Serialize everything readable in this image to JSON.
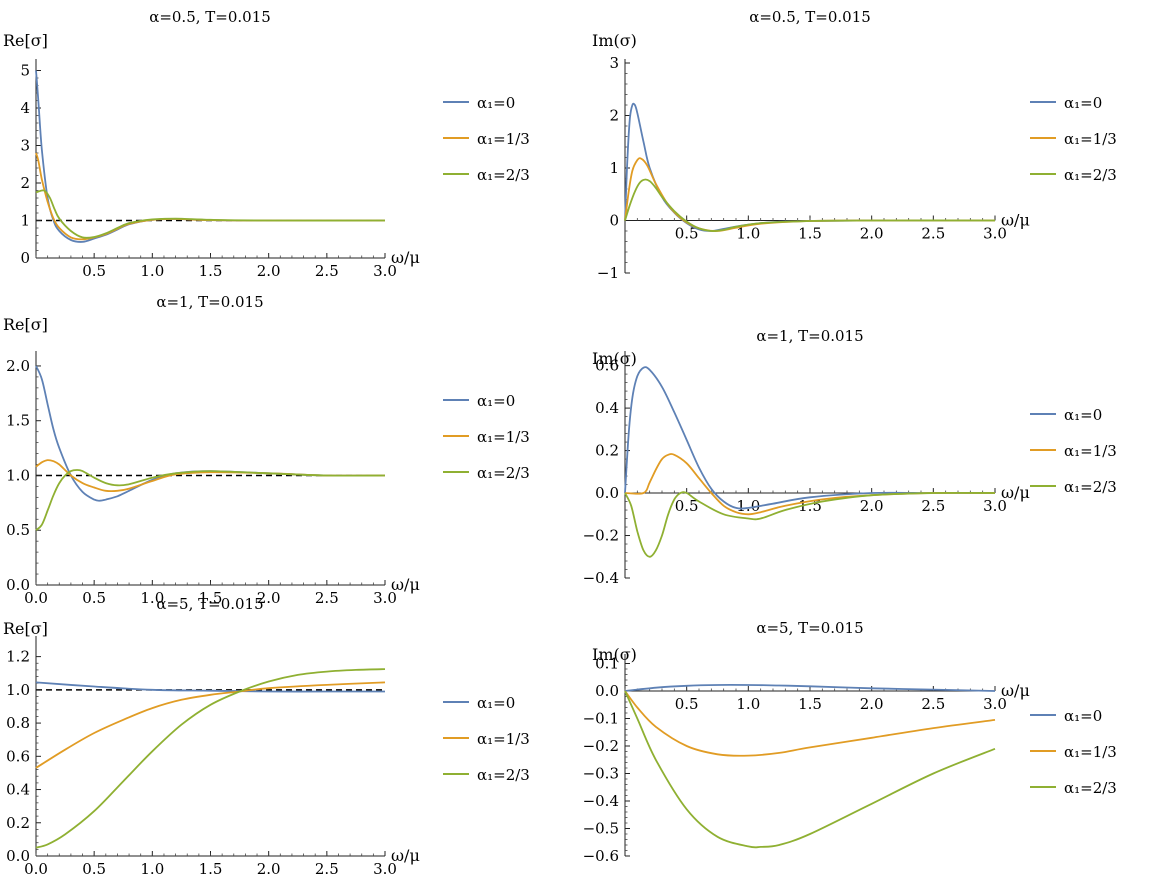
{
  "figure": {
    "legend_labels": [
      "α₁=0",
      "α₁=1/3",
      "α₁=2/3"
    ],
    "x_axis_label": "ω/μ"
  },
  "chart_data": [
    {
      "type": "line",
      "title": "α=0.5, T=0.015",
      "ylabel": "Re[σ]",
      "xlabel": "ω/μ",
      "xlim": [
        0,
        3
      ],
      "ylim": [
        0,
        5.2
      ],
      "xticks": [
        0.5,
        1.0,
        1.5,
        2.0,
        2.5,
        3.0
      ],
      "yticks": [
        0,
        1,
        2,
        3,
        4,
        5
      ],
      "legend_placement": "right",
      "reference_line": 1,
      "series": [
        {
          "name": "α₁=0",
          "color": "#5e81b5",
          "x": [
            0.0,
            0.02,
            0.05,
            0.1,
            0.15,
            0.2,
            0.3,
            0.4,
            0.5,
            0.6,
            0.7,
            0.8,
            1.0,
            1.2,
            1.5,
            2.0,
            3.0
          ],
          "y": [
            5.0,
            4.2,
            2.9,
            1.6,
            1.0,
            0.72,
            0.48,
            0.43,
            0.52,
            0.62,
            0.76,
            0.9,
            1.02,
            1.04,
            1.01,
            1.0,
            1.0
          ]
        },
        {
          "name": "α₁=1/3",
          "color": "#e19c24",
          "x": [
            0.0,
            0.02,
            0.05,
            0.1,
            0.15,
            0.2,
            0.3,
            0.4,
            0.5,
            0.6,
            0.7,
            0.8,
            1.0,
            1.2,
            1.5,
            2.0,
            3.0
          ],
          "y": [
            2.8,
            2.6,
            2.1,
            1.5,
            1.05,
            0.8,
            0.55,
            0.5,
            0.55,
            0.64,
            0.78,
            0.91,
            1.02,
            1.04,
            1.01,
            1.0,
            1.0
          ]
        },
        {
          "name": "α₁=2/3",
          "color": "#8fb032",
          "x": [
            0.0,
            0.02,
            0.05,
            0.08,
            0.12,
            0.16,
            0.2,
            0.3,
            0.4,
            0.5,
            0.6,
            0.7,
            0.8,
            1.0,
            1.2,
            1.5,
            2.0,
            3.0
          ],
          "y": [
            1.75,
            1.77,
            1.8,
            1.78,
            1.6,
            1.3,
            1.05,
            0.72,
            0.55,
            0.56,
            0.66,
            0.8,
            0.93,
            1.03,
            1.05,
            1.02,
            1.0,
            1.0
          ]
        }
      ]
    },
    {
      "type": "line",
      "title": "α=0.5, T=0.015",
      "ylabel": "Im(σ)",
      "xlabel": "ω/μ",
      "xlim": [
        0,
        3
      ],
      "ylim": [
        -1,
        3
      ],
      "xticks": [
        0.5,
        1.0,
        1.5,
        2.0,
        2.5,
        3.0
      ],
      "yticks": [
        -1,
        0,
        1,
        2,
        3
      ],
      "legend_placement": "right",
      "series": [
        {
          "name": "α₁=0",
          "color": "#5e81b5",
          "x": [
            0.0,
            0.02,
            0.04,
            0.06,
            0.08,
            0.1,
            0.15,
            0.2,
            0.3,
            0.4,
            0.5,
            0.6,
            0.7,
            0.8,
            1.0,
            1.2,
            1.5,
            2.0,
            3.0
          ],
          "y": [
            0.0,
            1.2,
            1.95,
            2.2,
            2.2,
            2.05,
            1.5,
            1.0,
            0.45,
            0.15,
            -0.05,
            -0.17,
            -0.2,
            -0.16,
            -0.08,
            -0.03,
            -0.01,
            0.0,
            0.0
          ]
        },
        {
          "name": "α₁=1/3",
          "color": "#e19c24",
          "x": [
            0.0,
            0.03,
            0.06,
            0.1,
            0.13,
            0.18,
            0.25,
            0.35,
            0.45,
            0.55,
            0.65,
            0.75,
            0.9,
            1.1,
            1.5,
            2.0,
            3.0
          ],
          "y": [
            0.0,
            0.55,
            0.95,
            1.15,
            1.18,
            1.05,
            0.7,
            0.3,
            0.05,
            -0.1,
            -0.18,
            -0.2,
            -0.14,
            -0.06,
            -0.01,
            0.0,
            0.0
          ]
        },
        {
          "name": "α₁=2/3",
          "color": "#8fb032",
          "x": [
            0.0,
            0.04,
            0.08,
            0.12,
            0.16,
            0.2,
            0.25,
            0.3,
            0.4,
            0.5,
            0.6,
            0.7,
            0.8,
            0.9,
            1.1,
            1.5,
            2.0,
            3.0
          ],
          "y": [
            0.0,
            0.3,
            0.55,
            0.72,
            0.78,
            0.75,
            0.62,
            0.45,
            0.18,
            -0.02,
            -0.15,
            -0.2,
            -0.18,
            -0.12,
            -0.05,
            -0.01,
            0.0,
            0.0
          ]
        }
      ]
    },
    {
      "type": "line",
      "title": "α=1, T=0.015",
      "ylabel": "Re[σ]",
      "xlabel": "ω/μ",
      "xlim": [
        0,
        3
      ],
      "ylim": [
        0,
        2.1
      ],
      "xticks": [
        0.0,
        0.5,
        1.0,
        1.5,
        2.0,
        2.5,
        3.0
      ],
      "yticks": [
        0.0,
        0.5,
        1.0,
        1.5,
        2.0
      ],
      "legend_placement": "right",
      "reference_line": 1,
      "series": [
        {
          "name": "α₁=0",
          "color": "#5e81b5",
          "x": [
            0.0,
            0.05,
            0.1,
            0.15,
            0.2,
            0.3,
            0.4,
            0.5,
            0.55,
            0.6,
            0.7,
            0.8,
            1.0,
            1.2,
            1.5,
            2.0,
            2.5,
            3.0
          ],
          "y": [
            2.0,
            1.88,
            1.65,
            1.42,
            1.25,
            1.0,
            0.85,
            0.78,
            0.77,
            0.78,
            0.81,
            0.86,
            0.96,
            1.02,
            1.04,
            1.02,
            1.0,
            1.0
          ]
        },
        {
          "name": "α₁=1/3",
          "color": "#e19c24",
          "x": [
            0.0,
            0.05,
            0.1,
            0.15,
            0.2,
            0.3,
            0.4,
            0.5,
            0.6,
            0.7,
            0.8,
            1.0,
            1.2,
            1.5,
            2.0,
            2.5,
            3.0
          ],
          "y": [
            1.08,
            1.12,
            1.14,
            1.13,
            1.1,
            1.0,
            0.93,
            0.89,
            0.86,
            0.86,
            0.88,
            0.95,
            1.01,
            1.03,
            1.02,
            1.0,
            1.0
          ]
        },
        {
          "name": "α₁=2/3",
          "color": "#8fb032",
          "x": [
            0.0,
            0.05,
            0.1,
            0.15,
            0.2,
            0.25,
            0.3,
            0.35,
            0.4,
            0.5,
            0.6,
            0.7,
            0.8,
            1.0,
            1.2,
            1.5,
            2.0,
            2.5,
            3.0
          ],
          "y": [
            0.5,
            0.55,
            0.68,
            0.82,
            0.93,
            1.0,
            1.04,
            1.05,
            1.04,
            0.98,
            0.93,
            0.91,
            0.92,
            0.98,
            1.02,
            1.04,
            1.02,
            1.0,
            1.0
          ]
        }
      ]
    },
    {
      "type": "line",
      "title": "α=1, T=0.015",
      "ylabel": "Im(σ)",
      "xlabel": "ω/μ",
      "xlim": [
        0,
        3
      ],
      "ylim": [
        -0.4,
        0.65
      ],
      "xticks": [
        0.5,
        1.0,
        1.5,
        2.0,
        2.5,
        3.0
      ],
      "yticks": [
        -0.4,
        -0.2,
        0.0,
        0.2,
        0.4,
        0.6
      ],
      "legend_placement": "right",
      "series": [
        {
          "name": "α₁=0",
          "color": "#5e81b5",
          "x": [
            0.0,
            0.03,
            0.06,
            0.1,
            0.15,
            0.2,
            0.3,
            0.4,
            0.5,
            0.6,
            0.7,
            0.8,
            0.9,
            1.0,
            1.2,
            1.5,
            2.0,
            2.5,
            3.0
          ],
          "y": [
            0.0,
            0.28,
            0.45,
            0.55,
            0.59,
            0.58,
            0.5,
            0.38,
            0.25,
            0.12,
            0.02,
            -0.04,
            -0.07,
            -0.07,
            -0.05,
            -0.02,
            0.0,
            0.0,
            0.0
          ]
        },
        {
          "name": "α₁=1/3",
          "color": "#e19c24",
          "x": [
            0.0,
            0.15,
            0.2,
            0.25,
            0.3,
            0.35,
            0.4,
            0.5,
            0.6,
            0.7,
            0.8,
            0.9,
            1.0,
            1.1,
            1.3,
            1.6,
            2.0,
            2.5,
            3.0
          ],
          "y": [
            0.0,
            0.0,
            0.05,
            0.11,
            0.16,
            0.18,
            0.18,
            0.14,
            0.07,
            0.0,
            -0.06,
            -0.09,
            -0.1,
            -0.09,
            -0.06,
            -0.03,
            -0.01,
            0.0,
            0.0
          ]
        },
        {
          "name": "α₁=2/3",
          "color": "#8fb032",
          "x": [
            0.0,
            0.05,
            0.1,
            0.15,
            0.2,
            0.25,
            0.3,
            0.35,
            0.4,
            0.45,
            0.5,
            0.6,
            0.8,
            1.0,
            1.1,
            1.3,
            1.6,
            2.0,
            2.5,
            3.0
          ],
          "y": [
            0.0,
            -0.06,
            -0.18,
            -0.27,
            -0.3,
            -0.27,
            -0.2,
            -0.1,
            -0.03,
            0.0,
            0.0,
            -0.04,
            -0.1,
            -0.12,
            -0.12,
            -0.08,
            -0.04,
            -0.01,
            0.0,
            0.0
          ]
        }
      ]
    },
    {
      "type": "line",
      "title": "α=5, T=0.015",
      "ylabel": "Re[σ]",
      "xlabel": "ω/μ",
      "xlim": [
        0,
        3
      ],
      "ylim": [
        0,
        1.3
      ],
      "xticks": [
        0.0,
        0.5,
        1.0,
        1.5,
        2.0,
        2.5,
        3.0
      ],
      "yticks": [
        0.0,
        0.2,
        0.4,
        0.6,
        0.8,
        1.0,
        1.2
      ],
      "legend_placement": "right",
      "reference_line": 1,
      "series": [
        {
          "name": "α₁=0",
          "color": "#5e81b5",
          "x": [
            0.0,
            0.5,
            1.0,
            1.5,
            2.0,
            2.5,
            3.0
          ],
          "y": [
            1.045,
            1.02,
            1.0,
            0.995,
            0.99,
            0.99,
            0.99
          ]
        },
        {
          "name": "α₁=1/3",
          "color": "#e19c24",
          "x": [
            0.0,
            0.25,
            0.5,
            0.75,
            1.0,
            1.25,
            1.5,
            1.75,
            2.0,
            2.5,
            3.0
          ],
          "y": [
            0.53,
            0.64,
            0.74,
            0.82,
            0.89,
            0.94,
            0.97,
            0.99,
            1.01,
            1.03,
            1.045
          ]
        },
        {
          "name": "α₁=2/3",
          "color": "#8fb032",
          "x": [
            0.0,
            0.1,
            0.25,
            0.5,
            0.75,
            1.0,
            1.25,
            1.5,
            1.75,
            2.0,
            2.25,
            2.5,
            2.75,
            3.0
          ],
          "y": [
            0.05,
            0.07,
            0.13,
            0.27,
            0.45,
            0.63,
            0.79,
            0.91,
            0.99,
            1.05,
            1.09,
            1.11,
            1.12,
            1.125
          ]
        }
      ]
    },
    {
      "type": "line",
      "title": "α=5, T=0.015",
      "ylabel": "Im(σ)",
      "xlabel": "ω/μ",
      "xlim": [
        0,
        3
      ],
      "ylim": [
        -0.6,
        0.12
      ],
      "xticks": [
        0.5,
        1.0,
        1.5,
        2.0,
        2.5,
        3.0
      ],
      "yticks": [
        -0.6,
        -0.5,
        -0.4,
        -0.3,
        -0.2,
        -0.1,
        0.0,
        0.1
      ],
      "legend_placement": "right",
      "series": [
        {
          "name": "α₁=0",
          "color": "#5e81b5",
          "x": [
            0.0,
            0.25,
            0.5,
            0.75,
            1.0,
            1.25,
            1.5,
            2.0,
            2.5,
            3.0
          ],
          "y": [
            0.0,
            0.012,
            0.019,
            0.022,
            0.022,
            0.02,
            0.017,
            0.01,
            0.005,
            0.0
          ]
        },
        {
          "name": "α₁=1/3",
          "color": "#e19c24",
          "x": [
            0.0,
            0.1,
            0.25,
            0.5,
            0.75,
            1.0,
            1.25,
            1.5,
            2.0,
            2.5,
            3.0
          ],
          "y": [
            0.0,
            -0.06,
            -0.13,
            -0.2,
            -0.23,
            -0.235,
            -0.225,
            -0.205,
            -0.17,
            -0.135,
            -0.105
          ]
        },
        {
          "name": "α₁=2/3",
          "color": "#8fb032",
          "x": [
            0.0,
            0.1,
            0.25,
            0.5,
            0.75,
            1.0,
            1.1,
            1.25,
            1.5,
            2.0,
            2.5,
            3.0
          ],
          "y": [
            0.0,
            -0.1,
            -0.25,
            -0.43,
            -0.53,
            -0.565,
            -0.567,
            -0.56,
            -0.52,
            -0.41,
            -0.3,
            -0.21
          ]
        }
      ]
    }
  ]
}
